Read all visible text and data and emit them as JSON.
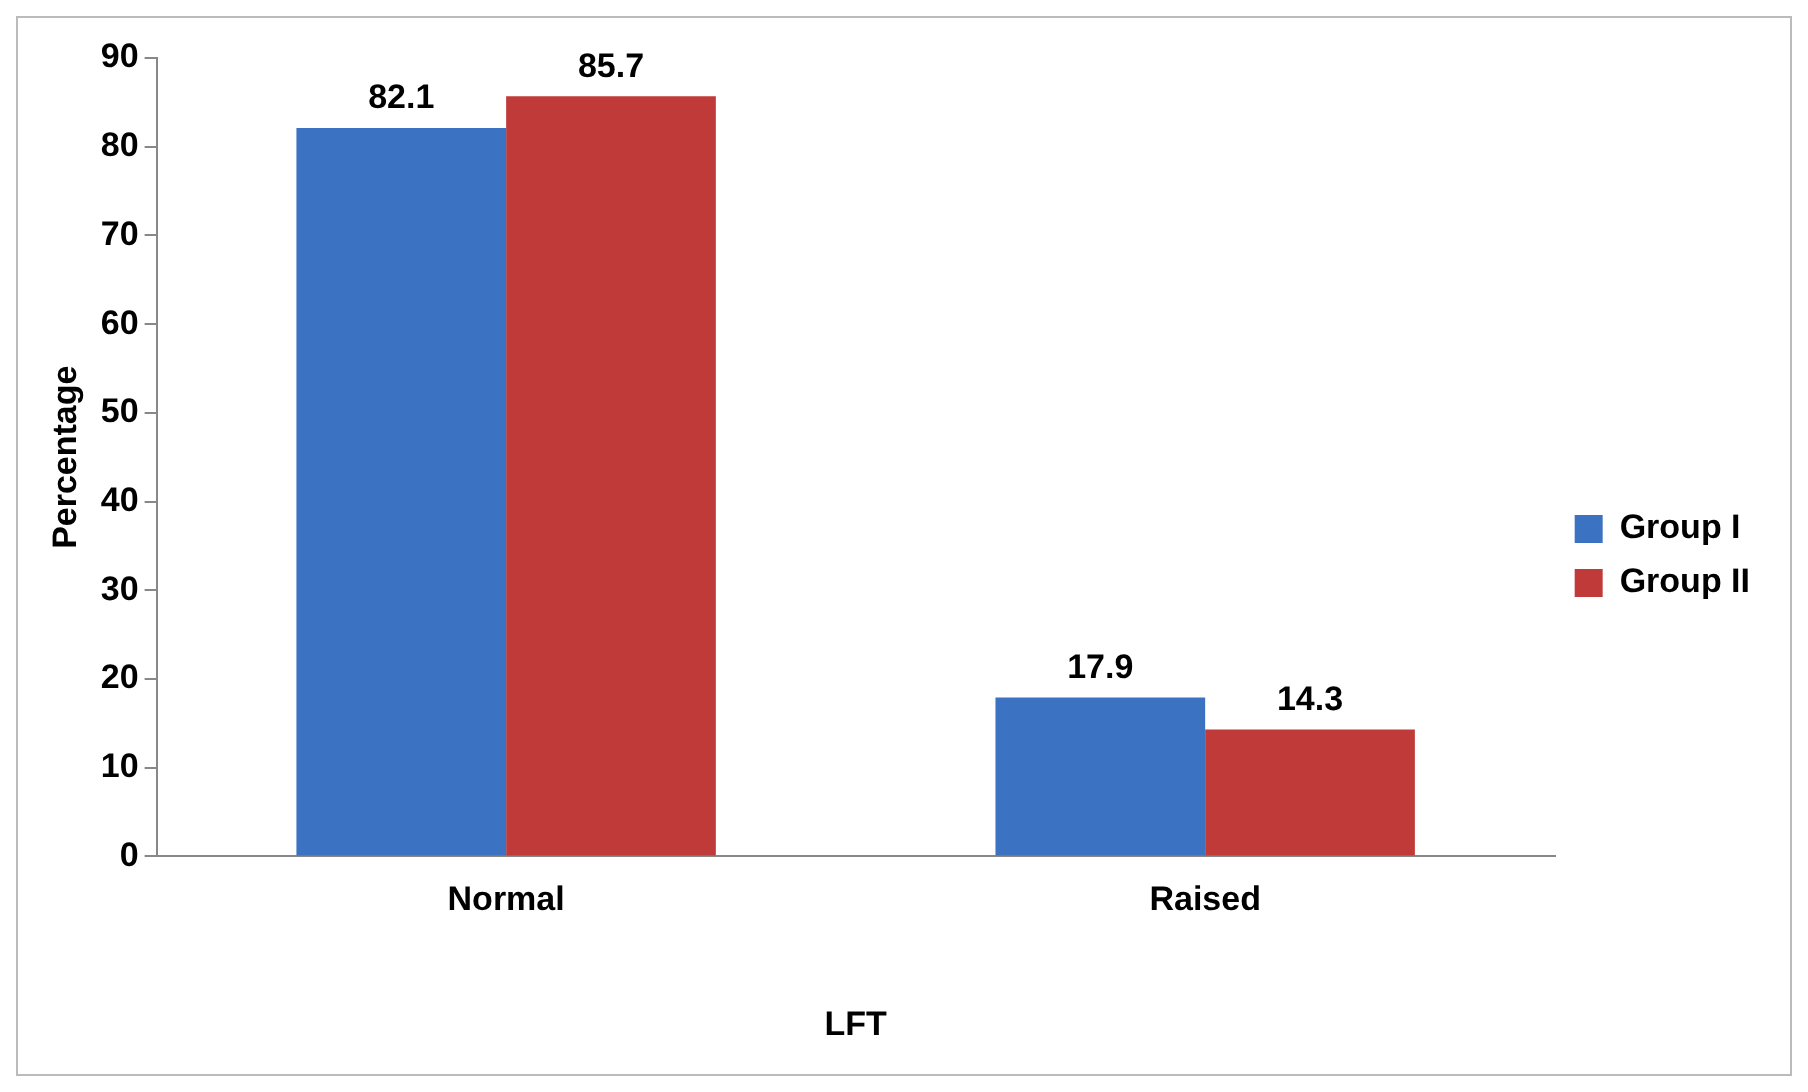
{
  "chart_data": {
    "type": "bar",
    "xlabel": "LFT",
    "ylabel": "Percentage",
    "categories": [
      "Normal",
      "Raised"
    ],
    "series": [
      {
        "name": "Group I",
        "color": "#3b73c2",
        "values": [
          82.1,
          17.9
        ]
      },
      {
        "name": "Group II",
        "color": "#c03a3a",
        "values": [
          85.7,
          14.3
        ]
      }
    ],
    "ylim": [
      0,
      90
    ],
    "yticks": [
      0,
      10,
      20,
      30,
      40,
      50,
      60,
      70,
      80,
      90
    ],
    "grid": false,
    "legend": "right",
    "data_labels": true
  }
}
